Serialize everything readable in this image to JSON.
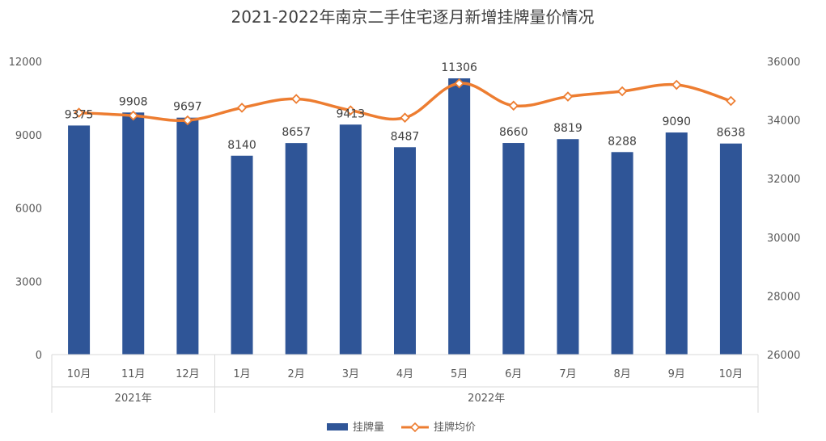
{
  "chart_data": {
    "type": "bar",
    "title": "2021-2022年南京二手住宅逐月新增挂牌量价情况",
    "categories": [
      "10月",
      "11月",
      "12月",
      "1月",
      "2月",
      "3月",
      "4月",
      "5月",
      "6月",
      "7月",
      "8月",
      "9月",
      "10月"
    ],
    "groups": [
      {
        "label": "2021年",
        "count": 3
      },
      {
        "label": "2022年",
        "count": 10
      }
    ],
    "series": [
      {
        "name": "挂牌量",
        "type": "bar",
        "axis": "left",
        "color": "#2f5597",
        "values": [
          9375,
          9908,
          9697,
          8140,
          8657,
          9413,
          8487,
          11306,
          8660,
          8819,
          8288,
          9090,
          8638
        ]
      },
      {
        "name": "挂牌均价",
        "type": "line",
        "axis": "right",
        "color": "#ed7d31",
        "values": [
          34250,
          34150,
          33990,
          34420,
          34720,
          34330,
          34080,
          35250,
          34490,
          34800,
          34980,
          35200,
          34650
        ]
      }
    ],
    "ylim_left": [
      0,
      12000
    ],
    "yticks_left": [
      "0",
      "3000",
      "6000",
      "9000",
      "12000"
    ],
    "ylim_right": [
      26000,
      36000
    ],
    "yticks_right": [
      "26000",
      "28000",
      "30000",
      "32000",
      "34000",
      "36000"
    ],
    "legend_position": "bottom",
    "grid": false
  }
}
